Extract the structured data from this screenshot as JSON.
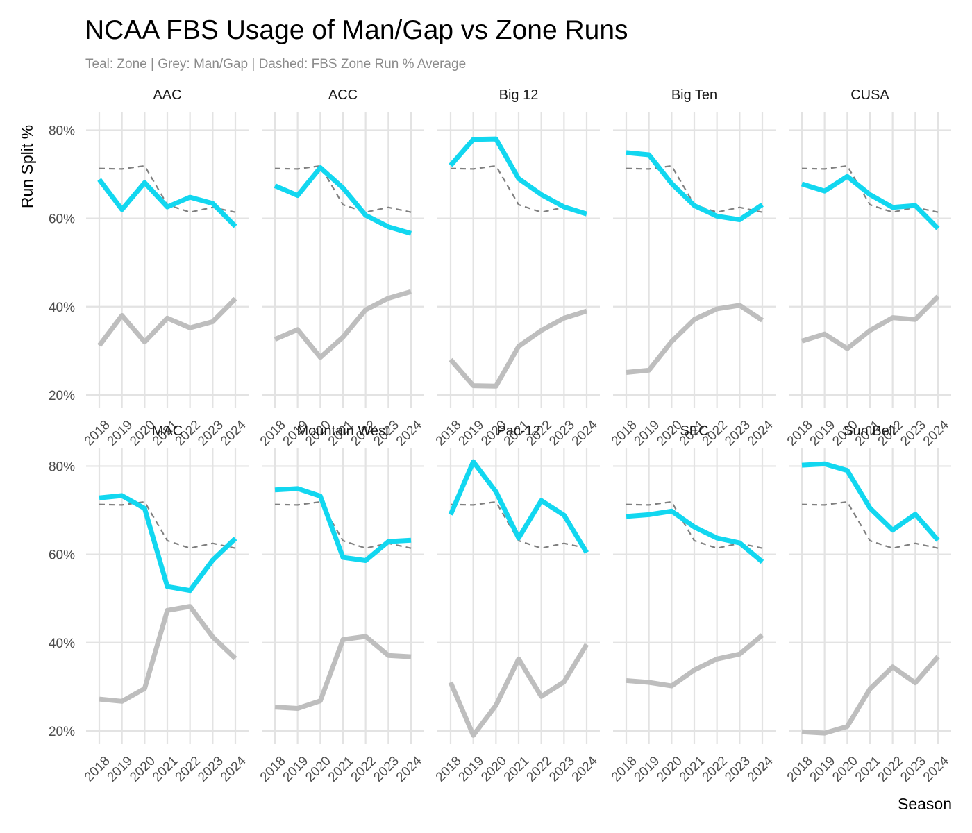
{
  "chart_data": {
    "type": "line",
    "title": "NCAA FBS Usage of Man/Gap vs Zone Runs",
    "subtitle": "Teal: Zone | Grey: Man/Gap | Dashed: FBS Zone Run % Average",
    "xlabel": "Season",
    "ylabel": "Run Split %",
    "x": [
      2018,
      2019,
      2020,
      2021,
      2022,
      2023,
      2024
    ],
    "ylim": [
      17,
      84
    ],
    "yticks": [
      20,
      40,
      60,
      80
    ],
    "ytick_labels": [
      "20%",
      "40%",
      "60%",
      "80%"
    ],
    "colors": {
      "zone": "#12d7f0",
      "man_gap": "#bebebe",
      "average": "#7f7f7f",
      "grid": "#e3e3e3"
    },
    "fbs_zone_average": {
      "name": "FBS Zone Run % Average",
      "values": [
        71.3,
        71.2,
        71.9,
        63.1,
        61.4,
        62.5,
        61.4
      ]
    },
    "panels": [
      {
        "name": "AAC",
        "zone": [
          68.8,
          62.0,
          68.1,
          62.6,
          64.8,
          63.4,
          58.2
        ],
        "man_gap": [
          31.2,
          38.0,
          32.0,
          37.4,
          35.2,
          36.6,
          41.8
        ]
      },
      {
        "name": "ACC",
        "zone": [
          67.4,
          65.2,
          71.5,
          66.9,
          60.7,
          58.1,
          56.6
        ],
        "man_gap": [
          32.6,
          34.8,
          28.5,
          33.1,
          39.3,
          41.9,
          43.4
        ]
      },
      {
        "name": "Big 12",
        "zone": [
          72.0,
          77.9,
          78.0,
          69.0,
          65.4,
          62.6,
          61.0
        ],
        "man_gap": [
          28.0,
          22.1,
          22.0,
          31.0,
          34.6,
          37.4,
          39.0
        ]
      },
      {
        "name": "Big Ten",
        "zone": [
          74.9,
          74.4,
          67.9,
          62.9,
          60.5,
          59.7,
          63.1
        ],
        "man_gap": [
          25.1,
          25.6,
          32.1,
          37.1,
          39.5,
          40.3,
          36.9
        ]
      },
      {
        "name": "CUSA",
        "zone": [
          67.8,
          66.2,
          69.5,
          65.4,
          62.5,
          62.9,
          57.7
        ],
        "man_gap": [
          32.2,
          33.8,
          30.5,
          34.6,
          37.5,
          37.1,
          42.3
        ]
      },
      {
        "name": "MAC",
        "zone": [
          72.8,
          73.3,
          70.4,
          52.7,
          51.8,
          58.7,
          63.6
        ],
        "man_gap": [
          27.2,
          26.7,
          29.6,
          47.3,
          48.2,
          41.3,
          36.4
        ]
      },
      {
        "name": "Mountain West",
        "zone": [
          74.6,
          74.9,
          73.2,
          59.3,
          58.6,
          62.9,
          63.2
        ],
        "man_gap": [
          25.4,
          25.1,
          26.8,
          40.7,
          41.4,
          37.1,
          36.8
        ]
      },
      {
        "name": "Pac-12",
        "zone": [
          69.0,
          81.0,
          74.2,
          63.7,
          72.2,
          68.9,
          60.4
        ],
        "man_gap": [
          31.0,
          19.0,
          25.8,
          36.3,
          27.8,
          31.1,
          39.6
        ]
      },
      {
        "name": "SEC",
        "zone": [
          68.6,
          69.0,
          69.8,
          66.2,
          63.7,
          62.6,
          58.3
        ],
        "man_gap": [
          31.4,
          31.0,
          30.2,
          33.8,
          36.3,
          37.4,
          41.7
        ]
      },
      {
        "name": "Sun Belt",
        "zone": [
          80.2,
          80.5,
          79.0,
          70.5,
          65.5,
          69.1,
          63.2
        ],
        "man_gap": [
          19.8,
          19.5,
          21.0,
          29.5,
          34.5,
          30.9,
          36.8
        ]
      }
    ]
  }
}
